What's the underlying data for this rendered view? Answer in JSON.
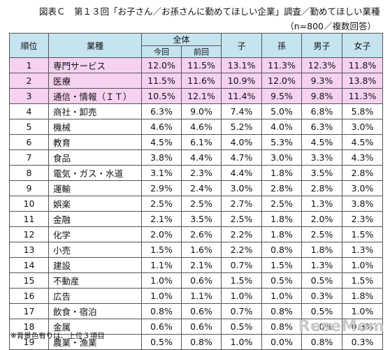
{
  "title": "図表Ｃ　第１３回「お子さん／お孫さんに勤めてほしい企業」調査／勤めてほしい業種",
  "subtitle": "（n=800／複数回答）",
  "headers": {
    "rank": "順位",
    "industry": "業種",
    "overall": "全体",
    "this_time": "今回",
    "last_time": "前回",
    "child": "子",
    "grandchild": "孫",
    "boy": "男子",
    "girl": "女子"
  },
  "rows": [
    {
      "rank": "1",
      "industry": "専門サービス",
      "v": [
        "12.0%",
        "11.5%",
        "13.1%",
        "11.3%",
        "12.3%",
        "11.8%"
      ],
      "highlight": true
    },
    {
      "rank": "2",
      "industry": "医療",
      "v": [
        "11.5%",
        "11.6%",
        "10.9%",
        "12.0%",
        "9.3%",
        "13.8%"
      ],
      "highlight": true
    },
    {
      "rank": "3",
      "industry": "通信・情報（ＩＴ）",
      "v": [
        "10.5%",
        "12.1%",
        "11.4%",
        "9.5%",
        "9.8%",
        "11.3%"
      ],
      "highlight": true
    },
    {
      "rank": "4",
      "industry": "商社・卸売",
      "v": [
        "6.3%",
        "9.0%",
        "7.4%",
        "5.0%",
        "6.8%",
        "5.8%"
      ],
      "highlight": false
    },
    {
      "rank": "5",
      "industry": "機械",
      "v": [
        "4.6%",
        "4.6%",
        "5.2%",
        "4.0%",
        "6.3%",
        "3.0%"
      ],
      "highlight": false
    },
    {
      "rank": "6",
      "industry": "教育",
      "v": [
        "4.5%",
        "6.1%",
        "4.0%",
        "5.3%",
        "4.5%",
        "4.5%"
      ],
      "highlight": false
    },
    {
      "rank": "7",
      "industry": "食品",
      "v": [
        "3.8%",
        "4.4%",
        "4.7%",
        "3.0%",
        "3.3%",
        "4.3%"
      ],
      "highlight": false
    },
    {
      "rank": "8",
      "industry": "電気・ガス・水道",
      "v": [
        "3.1%",
        "2.3%",
        "4.4%",
        "1.8%",
        "3.5%",
        "2.8%"
      ],
      "highlight": false
    },
    {
      "rank": "9",
      "industry": "運輸",
      "v": [
        "2.9%",
        "2.4%",
        "3.0%",
        "2.8%",
        "2.8%",
        "3.0%"
      ],
      "highlight": false
    },
    {
      "rank": "10",
      "industry": "娯楽",
      "v": [
        "2.5%",
        "2.5%",
        "2.7%",
        "2.5%",
        "1.3%",
        "3.8%"
      ],
      "highlight": false
    },
    {
      "rank": "11",
      "industry": "金融",
      "v": [
        "2.1%",
        "3.5%",
        "2.5%",
        "1.8%",
        "2.0%",
        "2.3%"
      ],
      "highlight": false
    },
    {
      "rank": "12",
      "industry": "化学",
      "v": [
        "2.0%",
        "2.6%",
        "2.2%",
        "1.8%",
        "2.5%",
        "1.5%"
      ],
      "highlight": false
    },
    {
      "rank": "13",
      "industry": "小売",
      "v": [
        "1.5%",
        "1.6%",
        "2.2%",
        "0.8%",
        "1.8%",
        "1.3%"
      ],
      "highlight": false
    },
    {
      "rank": "14",
      "industry": "建設",
      "v": [
        "1.1%",
        "2.1%",
        "0.7%",
        "1.5%",
        "1.3%",
        "1.0%"
      ],
      "highlight": false
    },
    {
      "rank": "15",
      "industry": "不動産",
      "v": [
        "1.0%",
        "0.6%",
        "1.5%",
        "0.5%",
        "0.5%",
        "1.5%"
      ],
      "highlight": false
    },
    {
      "rank": "16",
      "industry": "広告",
      "v": [
        "1.0%",
        "1.1%",
        "1.0%",
        "1.0%",
        "0.3%",
        "1.8%"
      ],
      "highlight": false
    },
    {
      "rank": "17",
      "industry": "飲食・宿泊",
      "v": [
        "0.8%",
        "0.6%",
        "0.7%",
        "0.8%",
        "0.5%",
        "1.0%"
      ],
      "highlight": false
    },
    {
      "rank": "18",
      "industry": "金属",
      "v": [
        "0.6%",
        "0.6%",
        "0.5%",
        "0.8%",
        "1.0%",
        "0.3%"
      ],
      "highlight": false
    },
    {
      "rank": "19",
      "industry": "農業・漁業",
      "v": [
        "0.5%",
        "0.8%",
        "1.0%",
        "0.0%",
        "0.8%",
        "0.3%"
      ],
      "highlight": false
    }
  ],
  "footnote": "※背景色有りは、上位３項目",
  "watermark": "ReseMom"
}
